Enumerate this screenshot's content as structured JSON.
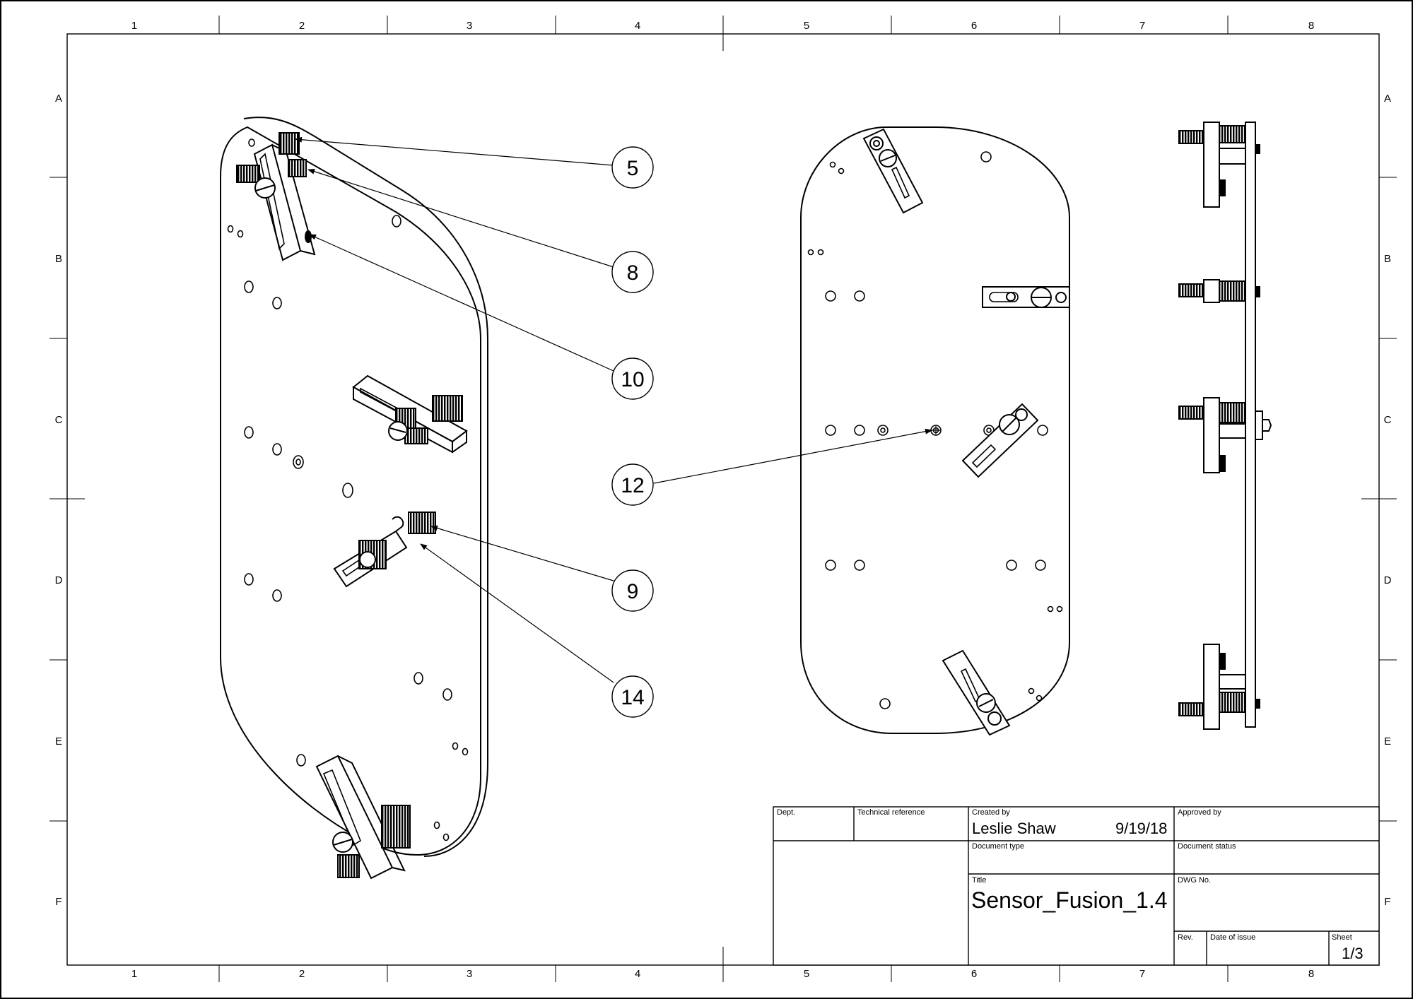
{
  "frame": {
    "column_labels": [
      "1",
      "2",
      "3",
      "4",
      "5",
      "6",
      "7",
      "8"
    ],
    "row_labels": [
      "A",
      "B",
      "C",
      "D",
      "E",
      "F"
    ]
  },
  "balloons": [
    "5",
    "8",
    "10",
    "12",
    "9",
    "14"
  ],
  "title_block": {
    "dept_label": "Dept.",
    "technical_reference_label": "Technical reference",
    "created_by_label": "Created by",
    "created_by": "Leslie Shaw",
    "created_date": "9/19/18",
    "approved_by_label": "Approved by",
    "document_type_label": "Document type",
    "document_status_label": "Document status",
    "title_label": "Title",
    "title": "Sensor_Fusion_1.4",
    "dwg_no_label": "DWG No.",
    "rev_label": "Rev.",
    "date_of_issue_label": "Date of issue",
    "sheet_label": "Sheet",
    "sheet": "1/3"
  },
  "colors": {
    "ink": "#000000",
    "paper": "#ffffff"
  }
}
